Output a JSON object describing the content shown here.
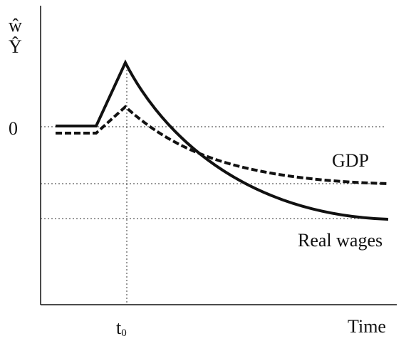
{
  "axis": {
    "y_labels": [
      "ŵ",
      "Ŷ"
    ],
    "zero_label": "0",
    "t0_label": "t",
    "t0_sub": "0",
    "x_label": "Time"
  },
  "curves": {
    "gdp_label": "GDP",
    "wages_label": "Real wages"
  }
}
